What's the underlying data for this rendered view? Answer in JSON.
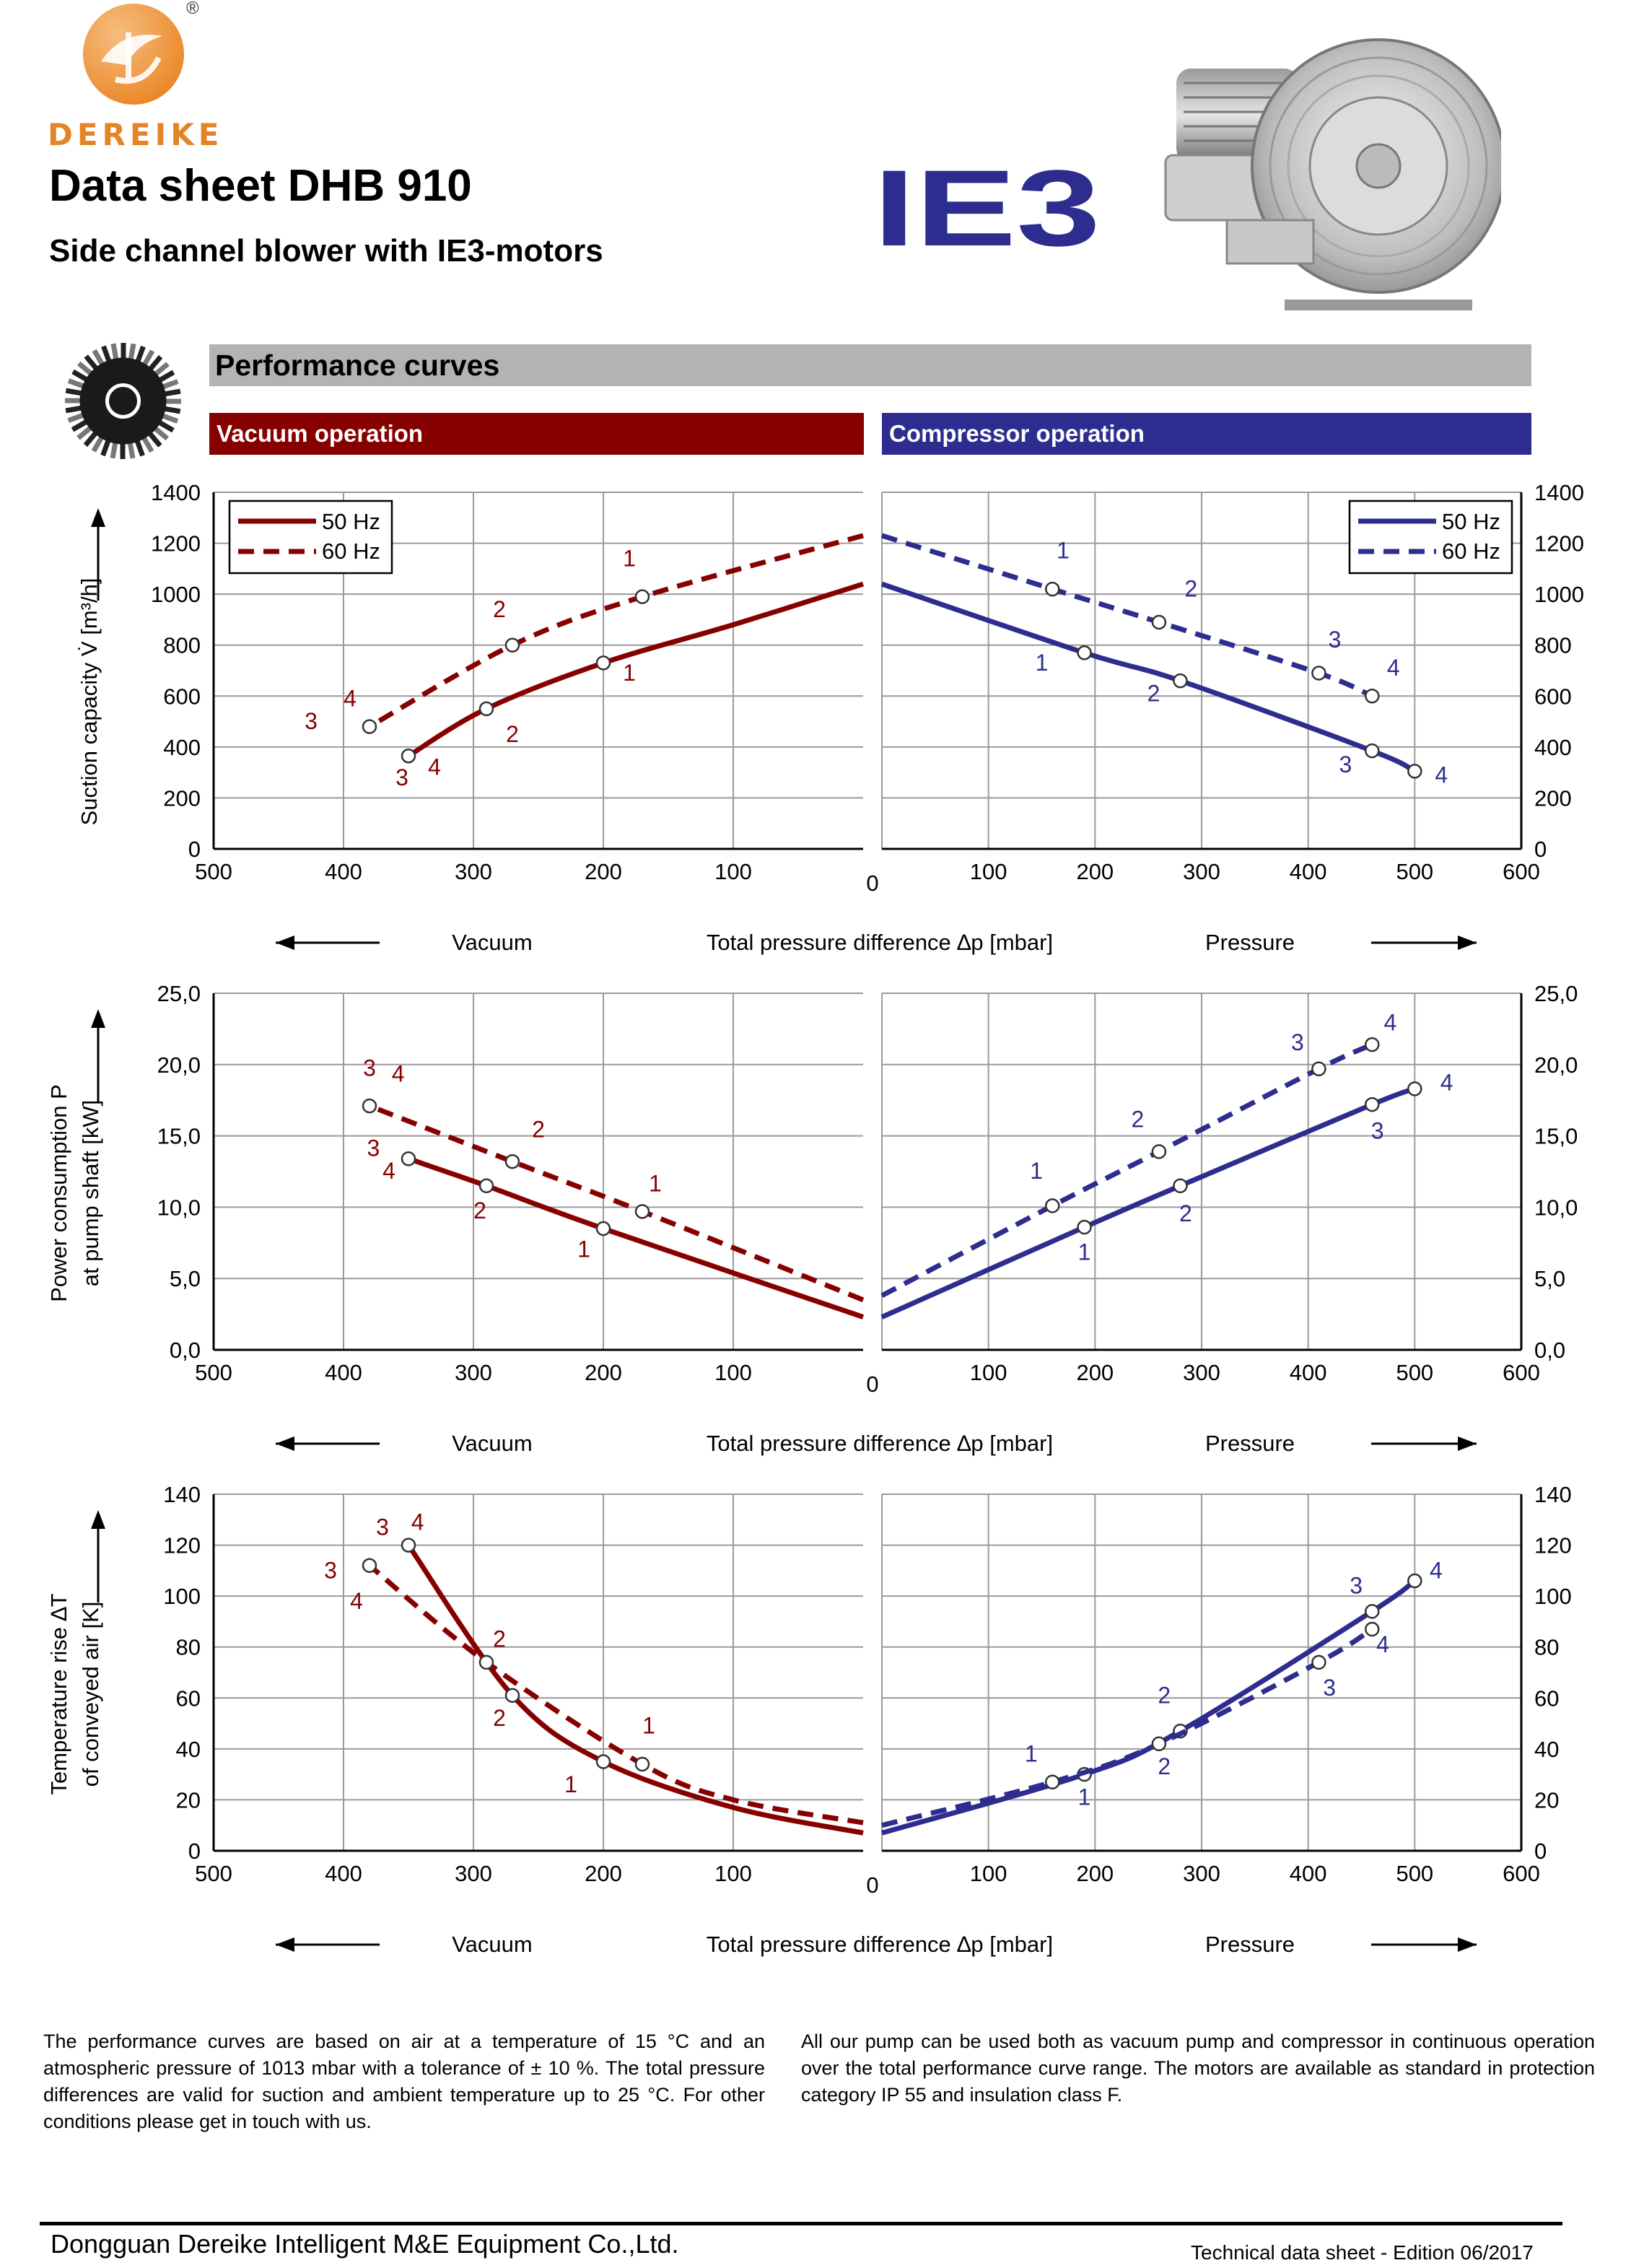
{
  "header": {
    "brand": "DEREIKE",
    "registered": "®",
    "title": "Data sheet DHB 910",
    "subtitle": "Side channel blower with IE3-motors",
    "ie3_logo_text": "IE3"
  },
  "sections": {
    "performance": "Performance curves",
    "vacuum": "Vacuum operation",
    "compressor": "Compressor operation"
  },
  "colors": {
    "vacuum": "#870000",
    "compressor": "#2d2d8f",
    "brand_orange": "#e38527",
    "section_grey": "#b3b3b3"
  },
  "direction_labels": {
    "vacuum": "Vacuum",
    "pressure": "Pressure",
    "xlabel": "Total pressure difference ∆p [mbar]"
  },
  "legend": {
    "hz50": "50 Hz",
    "hz60": "60 Hz"
  },
  "chart_data": [
    {
      "type": "line",
      "ylabel": "Suction capacity V̇ [m³/h]",
      "ylim": [
        0,
        1400
      ],
      "yticks": [
        "0",
        "200",
        "400",
        "600",
        "800",
        "1000",
        "1200",
        "1400"
      ],
      "vacuum_xticks": [
        "500",
        "400",
        "300",
        "200",
        "100"
      ],
      "pressure_xticks": [
        "100",
        "200",
        "300",
        "400",
        "500",
        "600"
      ],
      "zero_label": "0",
      "legend": "top-outer",
      "vacuum": [
        {
          "name": "50 Hz",
          "dash": false,
          "x": [
            0,
            100,
            200,
            290,
            350
          ],
          "y": [
            1040,
            880,
            730,
            550,
            365
          ],
          "points": [
            [
              200,
              730
            ],
            [
              290,
              550
            ],
            [
              350,
              365
            ]
          ],
          "labels": [
            {
              "t": "1",
              "x": 180,
              "y": 660
            },
            {
              "t": "2",
              "x": 270,
              "y": 420
            },
            {
              "t": "3",
              "x": 355,
              "y": 250
            },
            {
              "t": "4",
              "x": 330,
              "y": 290
            }
          ]
        },
        {
          "name": "60 Hz",
          "dash": true,
          "x": [
            0,
            170,
            270,
            380
          ],
          "y": [
            1230,
            990,
            800,
            480
          ],
          "points": [
            [
              170,
              990
            ],
            [
              270,
              800
            ],
            [
              380,
              480
            ]
          ],
          "labels": [
            {
              "t": "1",
              "x": 180,
              "y": 1110
            },
            {
              "t": "2",
              "x": 280,
              "y": 910
            },
            {
              "t": "3",
              "x": 425,
              "y": 470
            },
            {
              "t": "4",
              "x": 395,
              "y": 560
            }
          ]
        }
      ],
      "pressure": [
        {
          "name": "50 Hz",
          "dash": false,
          "x": [
            0,
            190,
            280,
            460,
            500
          ],
          "y": [
            1040,
            770,
            660,
            385,
            305
          ],
          "points": [
            [
              190,
              770
            ],
            [
              280,
              660
            ],
            [
              460,
              385
            ],
            [
              500,
              305
            ]
          ],
          "labels": [
            {
              "t": "1",
              "x": 150,
              "y": 700
            },
            {
              "t": "2",
              "x": 255,
              "y": 580
            },
            {
              "t": "3",
              "x": 435,
              "y": 300
            },
            {
              "t": "4",
              "x": 525,
              "y": 260
            }
          ]
        },
        {
          "name": "60 Hz",
          "dash": true,
          "x": [
            0,
            160,
            260,
            410,
            460
          ],
          "y": [
            1230,
            1020,
            890,
            690,
            600
          ],
          "points": [
            [
              160,
              1020
            ],
            [
              260,
              890
            ],
            [
              410,
              690
            ],
            [
              460,
              600
            ]
          ],
          "labels": [
            {
              "t": "1",
              "x": 170,
              "y": 1140
            },
            {
              "t": "2",
              "x": 290,
              "y": 990
            },
            {
              "t": "3",
              "x": 425,
              "y": 790
            },
            {
              "t": "4",
              "x": 480,
              "y": 680
            }
          ]
        }
      ]
    },
    {
      "type": "line",
      "ylabel": "Power consumption P",
      "ylabel2": "at pump shaft [kW]",
      "ylim": [
        0,
        25
      ],
      "yticks": [
        "0,0",
        "5,0",
        "10,0",
        "15,0",
        "20,0",
        "25,0"
      ],
      "vacuum_xticks": [
        "500",
        "400",
        "300",
        "200",
        "100"
      ],
      "pressure_xticks": [
        "100",
        "200",
        "300",
        "400",
        "500",
        "600"
      ],
      "zero_label": "0",
      "vacuum": [
        {
          "name": "50 Hz",
          "dash": false,
          "x": [
            0,
            200,
            290,
            350
          ],
          "y": [
            2.3,
            8.5,
            11.5,
            13.4
          ],
          "points": [
            [
              200,
              8.5
            ],
            [
              290,
              11.5
            ],
            [
              350,
              13.4
            ]
          ],
          "labels": [
            {
              "t": "1",
              "x": 215,
              "y": 6.5
            },
            {
              "t": "2",
              "x": 295,
              "y": 9.2
            },
            {
              "t": "3",
              "x": 377,
              "y": 13.6
            },
            {
              "t": "4",
              "x": 365,
              "y": 12.0
            }
          ]
        },
        {
          "name": "60 Hz",
          "dash": true,
          "x": [
            0,
            170,
            270,
            380
          ],
          "y": [
            3.5,
            9.7,
            13.2,
            17.1
          ],
          "points": [
            [
              170,
              9.7
            ],
            [
              270,
              13.2
            ],
            [
              380,
              17.1
            ]
          ],
          "labels": [
            {
              "t": "1",
              "x": 160,
              "y": 11.1
            },
            {
              "t": "2",
              "x": 250,
              "y": 14.9
            },
            {
              "t": "3",
              "x": 380,
              "y": 19.2
            },
            {
              "t": "4",
              "x": 358,
              "y": 18.8
            }
          ]
        }
      ],
      "pressure": [
        {
          "name": "50 Hz",
          "dash": false,
          "x": [
            0,
            190,
            280,
            460,
            500
          ],
          "y": [
            2.3,
            8.6,
            11.5,
            17.2,
            18.3
          ],
          "points": [
            [
              190,
              8.6
            ],
            [
              280,
              11.5
            ],
            [
              460,
              17.2
            ],
            [
              500,
              18.3
            ]
          ],
          "labels": [
            {
              "t": "1",
              "x": 190,
              "y": 6.3
            },
            {
              "t": "2",
              "x": 285,
              "y": 9.0
            },
            {
              "t": "3",
              "x": 465,
              "y": 14.8
            },
            {
              "t": "4",
              "x": 530,
              "y": 18.2
            }
          ]
        },
        {
          "name": "60 Hz",
          "dash": true,
          "x": [
            0,
            160,
            260,
            410,
            460
          ],
          "y": [
            3.8,
            10.1,
            13.9,
            19.7,
            21.4
          ],
          "points": [
            [
              160,
              10.1
            ],
            [
              260,
              13.9
            ],
            [
              410,
              19.7
            ],
            [
              460,
              21.4
            ]
          ],
          "labels": [
            {
              "t": "1",
              "x": 145,
              "y": 12.0
            },
            {
              "t": "2",
              "x": 240,
              "y": 15.6
            },
            {
              "t": "3",
              "x": 390,
              "y": 21.0
            },
            {
              "t": "4",
              "x": 477,
              "y": 22.4
            }
          ]
        }
      ]
    },
    {
      "type": "line",
      "ylabel": "Temperature rise ∆T",
      "ylabel2": "of conveyed air [K]",
      "ylim": [
        0,
        140
      ],
      "yticks": [
        "0",
        "20",
        "40",
        "60",
        "80",
        "100",
        "120",
        "140"
      ],
      "vacuum_xticks": [
        "500",
        "400",
        "300",
        "200",
        "100"
      ],
      "pressure_xticks": [
        "100",
        "200",
        "300",
        "400",
        "500",
        "600"
      ],
      "zero_label": "0",
      "vacuum": [
        {
          "name": "50 Hz",
          "dash": false,
          "x": [
            0,
            100,
            200,
            270,
            350
          ],
          "y": [
            7,
            17,
            35,
            61,
            120
          ],
          "points": [
            [
              200,
              35
            ],
            [
              270,
              61
            ],
            [
              350,
              120
            ]
          ],
          "labels": [
            {
              "t": "1",
              "x": 225,
              "y": 23
            },
            {
              "t": "2",
              "x": 280,
              "y": 49
            },
            {
              "t": "3",
              "x": 370,
              "y": 124
            },
            {
              "t": "4",
              "x": 343,
              "y": 126
            }
          ]
        },
        {
          "name": "60 Hz",
          "dash": true,
          "x": [
            0,
            100,
            170,
            290,
            380
          ],
          "y": [
            11,
            20,
            34,
            74,
            112
          ],
          "points": [
            [
              170,
              34
            ],
            [
              290,
              74
            ],
            [
              380,
              112
            ]
          ],
          "labels": [
            {
              "t": "1",
              "x": 165,
              "y": 46
            },
            {
              "t": "2",
              "x": 280,
              "y": 80
            },
            {
              "t": "3",
              "x": 410,
              "y": 107
            },
            {
              "t": "4",
              "x": 390,
              "y": 95
            }
          ]
        }
      ],
      "pressure": [
        {
          "name": "50 Hz",
          "dash": false,
          "x": [
            0,
            190,
            280,
            460,
            500
          ],
          "y": [
            7,
            30,
            47,
            94,
            106
          ],
          "points": [
            [
              190,
              30
            ],
            [
              280,
              47
            ],
            [
              460,
              94
            ],
            [
              500,
              106
            ]
          ],
          "labels": [
            {
              "t": "1",
              "x": 190,
              "y": 18
            },
            {
              "t": "2",
              "x": 265,
              "y": 30
            },
            {
              "t": "3",
              "x": 445,
              "y": 101
            },
            {
              "t": "4",
              "x": 520,
              "y": 107
            }
          ]
        },
        {
          "name": "60 Hz",
          "dash": true,
          "x": [
            0,
            160,
            260,
            410,
            460
          ],
          "y": [
            10,
            27,
            42,
            74,
            87
          ],
          "points": [
            [
              160,
              27
            ],
            [
              260,
              42
            ],
            [
              410,
              74
            ],
            [
              460,
              87
            ]
          ],
          "labels": [
            {
              "t": "1",
              "x": 140,
              "y": 35
            },
            {
              "t": "2",
              "x": 265,
              "y": 58
            },
            {
              "t": "3",
              "x": 420,
              "y": 61
            },
            {
              "t": "4",
              "x": 470,
              "y": 78
            }
          ]
        }
      ]
    }
  ],
  "notes": {
    "left": "The performance curves are based on air at a temperature of 15 °C and an atmospheric pressure of 1013 mbar with a tolerance of ± 10 %. The total pressure differences are valid for suction and ambient temperature up to 25 °C. For other conditions please get in touch with us.",
    "right": "All our pump can be used both as vacuum pump and compressor in continuous operation over the total performance curve range. The motors are available as standard in protection category IP 55 and insulation class F."
  },
  "footer": {
    "company": "Dongguan Dereike Intelligent M&E Equipment Co.,Ltd.",
    "edition": "Technical data sheet - Edition 06/2017"
  }
}
